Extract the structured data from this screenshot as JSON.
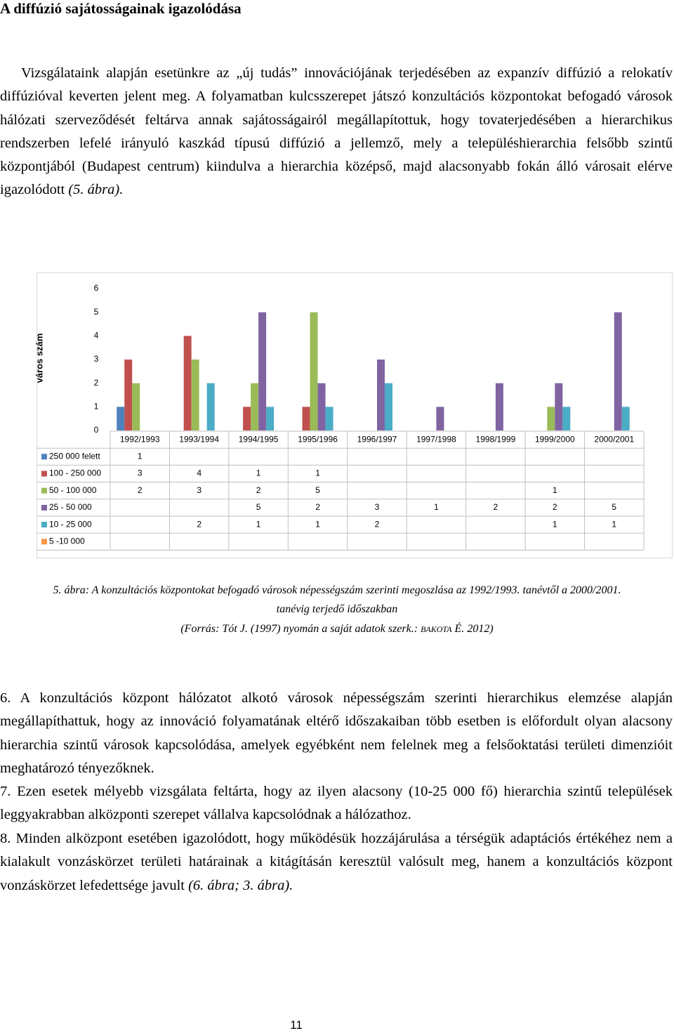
{
  "heading": "A diffúzió sajátosságainak igazolódása",
  "paragraph1": {
    "text": "Vizsgálataink alapján esetünkre az „új tudás” innovációjának terjedésében az expanzív diffúzió a relokatív diffúzióval keverten jelent meg. A folyamatban kulcsszerepet játszó konzultációs központokat befogadó városok hálózati szerveződését feltárva annak sajátosságairól megállapítottuk, hogy tovaterjedésében a hierarchikus rendszerben lefelé irányuló kaszkád típusú diffúzió a jellemző, mely a településhierarchia felsőbb szintű központjából (Budapest centrum) kiindulva a hierarchia középső, majd alacsonyabb fokán álló városait elérve igazolódott",
    "ref": "(5. ábra)."
  },
  "chart_data": {
    "type": "bar",
    "ylabel": "város szám",
    "categories": [
      "1992/1993",
      "1993/1994",
      "1994/1995",
      "1995/1996",
      "1996/1997",
      "1997/1998",
      "1998/1999",
      "1999/2000",
      "2000/2001"
    ],
    "series": [
      {
        "name": "250 000 felett",
        "color": "#4f81bd",
        "values": [
          1,
          null,
          null,
          null,
          null,
          null,
          null,
          null,
          null
        ]
      },
      {
        "name": "100 - 250 000",
        "color": "#c0504d",
        "values": [
          3,
          4,
          1,
          1,
          null,
          null,
          null,
          null,
          null
        ]
      },
      {
        "name": "50 - 100 000",
        "color": "#9bbb59",
        "values": [
          2,
          3,
          2,
          5,
          null,
          null,
          null,
          1,
          null
        ]
      },
      {
        "name": "25 - 50 000",
        "color": "#8064a2",
        "values": [
          null,
          null,
          5,
          2,
          3,
          1,
          2,
          2,
          5
        ]
      },
      {
        "name": "10 - 25 000",
        "color": "#4bacc6",
        "values": [
          null,
          2,
          1,
          1,
          2,
          null,
          null,
          1,
          1
        ]
      },
      {
        "name": "5 -10 000",
        "color": "#f79646",
        "values": [
          null,
          null,
          null,
          null,
          null,
          null,
          null,
          null,
          null
        ]
      }
    ],
    "ylim": [
      0,
      6
    ],
    "yticks": [
      0,
      1,
      2,
      3,
      4,
      5,
      6
    ],
    "grid": false
  },
  "caption": {
    "line1": "5. ábra: A konzultációs központokat befogadó városok népességszám szerinti megoszlása az 1992/1993. tanévtől a 2000/2001.",
    "line2": "tanévig terjedő időszakban",
    "line3_start": "(Forrás: Tót J. (1997) nyomán a saját adatok szerk.:",
    "line3_author": "BAKOTA",
    "line3_end": "É. 2012)"
  },
  "paragraphs": [
    {
      "text": "6. A konzultációs központ hálózatot alkotó városok népességszám szerinti hierarchikus elemzése alapján megállapíthattuk, hogy az innováció folyamatának eltérő időszakaiban több esetben is előfordult olyan alacsony hierarchia szintű városok kapcsolódása, amelyek egyébként nem felelnek meg a felsőoktatási területi dimenzióit meghatározó tényezőknek."
    },
    {
      "text": "7. Ezen esetek mélyebb vizsgálata feltárta, hogy az ilyen alacsony (10-25 000 fő) hierarchia szintű települések leggyakrabban alközponti szerepet vállalva kapcsolódnak a hálózathoz."
    },
    {
      "text": "8. Minden alközpont esetében igazolódott, hogy működésük hozzájárulása a térségük adaptációs értékéhez nem a kialakult vonzáskörzet területi határainak a kitágításán keresztül valósult meg, hanem a konzultációs központ vonzáskörzet lefedettsége javult",
      "ref": "(6. ábra; 3. ábra)."
    }
  ],
  "page_number": "11"
}
